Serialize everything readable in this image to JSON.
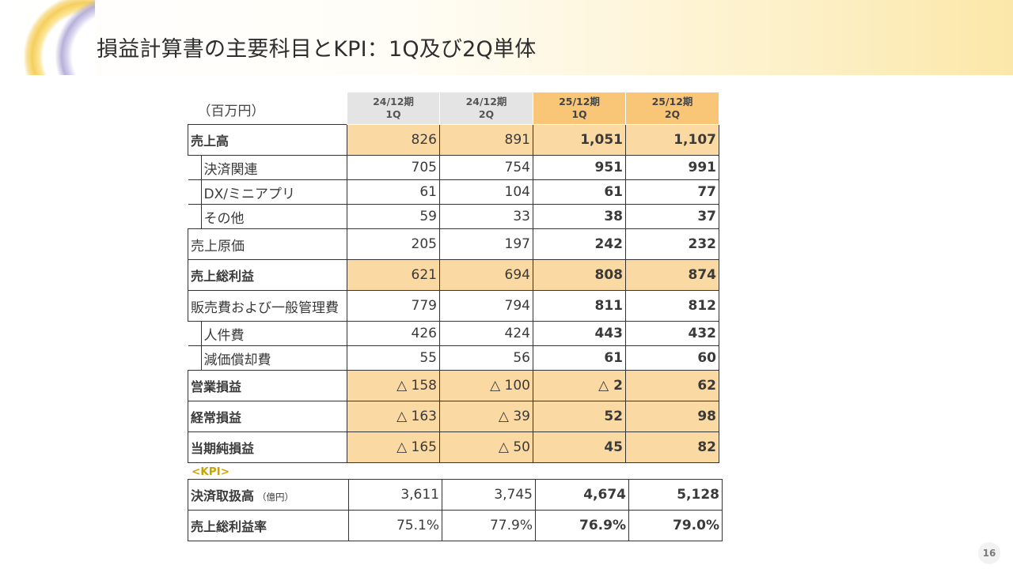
{
  "title": "損益計算書の主要科目とKPI：1Q及び2Q単体",
  "unit": "（百万円）",
  "columns": [
    {
      "line1": "24/12期",
      "line2": "1Q"
    },
    {
      "line1": "24/12期",
      "line2": "2Q"
    },
    {
      "line1": "25/12期",
      "line2": "1Q"
    },
    {
      "line1": "25/12期",
      "line2": "2Q"
    }
  ],
  "rows": [
    {
      "label": "売上高",
      "values": [
        "826",
        "891",
        "1,051",
        "1,107"
      ]
    },
    {
      "label": "決済関連",
      "values": [
        "705",
        "754",
        "951",
        "991"
      ]
    },
    {
      "label": "DX/ミニアプリ",
      "values": [
        "61",
        "104",
        "61",
        "77"
      ]
    },
    {
      "label": "その他",
      "values": [
        "59",
        "33",
        "38",
        "37"
      ]
    },
    {
      "label": "売上原価",
      "values": [
        "205",
        "197",
        "242",
        "232"
      ]
    },
    {
      "label": "売上総利益",
      "values": [
        "621",
        "694",
        "808",
        "874"
      ]
    },
    {
      "label": "販売費および一般管理費",
      "values": [
        "779",
        "794",
        "811",
        "812"
      ]
    },
    {
      "label": "人件費",
      "values": [
        "426",
        "424",
        "443",
        "432"
      ]
    },
    {
      "label": "減価償却費",
      "values": [
        "55",
        "56",
        "61",
        "60"
      ]
    },
    {
      "label": "営業損益",
      "values": [
        "△ 158",
        "△ 100",
        "△ 2",
        "62"
      ]
    },
    {
      "label": "経常損益",
      "values": [
        "△ 163",
        "△ 39",
        "52",
        "98"
      ]
    },
    {
      "label": "当期純損益",
      "values": [
        "△ 165",
        "△ 50",
        "45",
        "82"
      ]
    }
  ],
  "kpi_heading": "<KPI>",
  "kpi_rows": [
    {
      "label": "決済取扱高",
      "unit": "（億円）",
      "values": [
        "3,611",
        "3,745",
        "4,674",
        "5,128"
      ]
    },
    {
      "label": "売上総利益率",
      "values": [
        "75.1%",
        "77.9%",
        "76.9%",
        "79.0%"
      ]
    }
  ],
  "page_number": "16",
  "colors": {
    "prior_header": "#e4e4e4",
    "current_header": "#f9c577",
    "highlight": "#fbd9a3",
    "kpi_label": "#c9a400"
  }
}
